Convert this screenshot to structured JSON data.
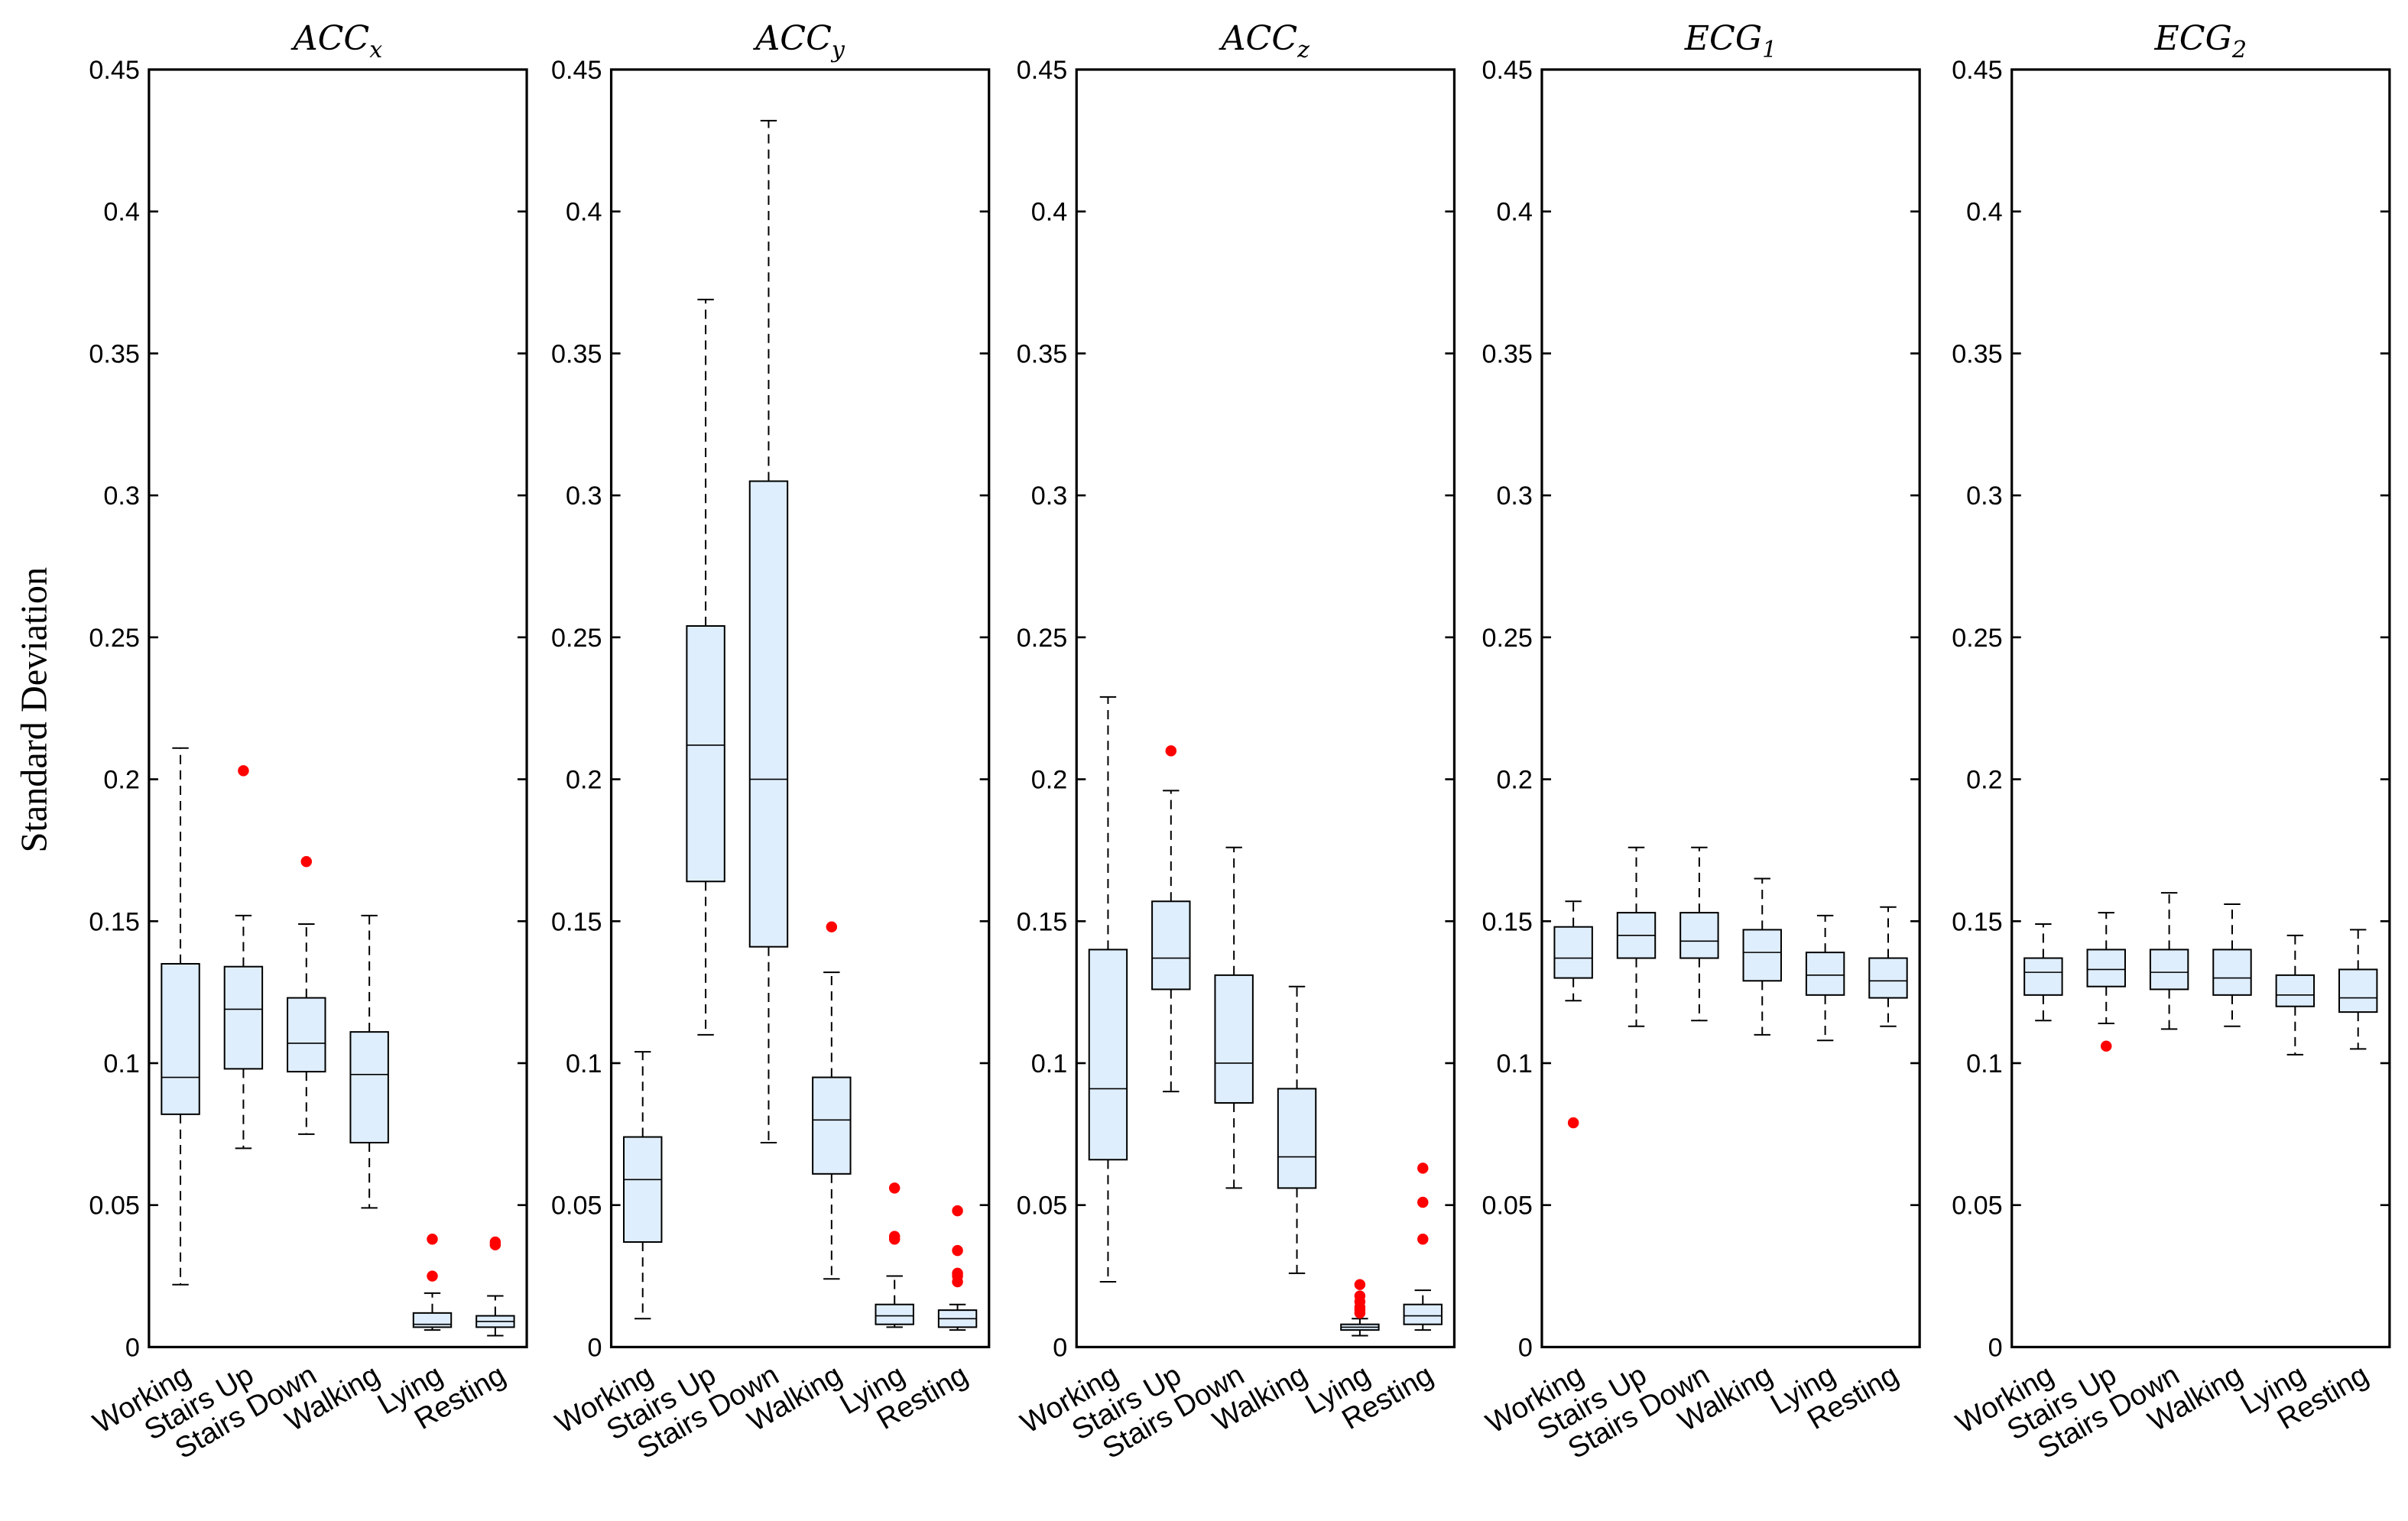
{
  "chart_data": {
    "type": "box",
    "ylabel": "Standard Deviation",
    "ylim": [
      0,
      0.45
    ],
    "yticks": [
      0,
      0.05,
      0.1,
      0.15,
      0.2,
      0.25,
      0.3,
      0.35,
      0.4,
      0.45
    ],
    "ytick_labels": [
      "0",
      "0.05",
      "0.1",
      "0.15",
      "0.2",
      "0.25",
      "0.3",
      "0.35",
      "0.4",
      "0.45"
    ],
    "categories": [
      "Working",
      "Stairs Up",
      "Stairs Down",
      "Walking",
      "Lying",
      "Resting"
    ],
    "colors": {
      "box_fill": "#dfeefc",
      "box_edge": "#000000",
      "outlier": "#ff0000"
    },
    "panels": [
      {
        "title_base": "ACC",
        "title_sub": "x",
        "boxes": [
          {
            "whisker_low": 0.022,
            "q1": 0.082,
            "median": 0.095,
            "q3": 0.135,
            "whisker_high": 0.211,
            "outliers": []
          },
          {
            "whisker_low": 0.07,
            "q1": 0.098,
            "median": 0.119,
            "q3": 0.134,
            "whisker_high": 0.152,
            "outliers": [
              0.203
            ]
          },
          {
            "whisker_low": 0.075,
            "q1": 0.097,
            "median": 0.107,
            "q3": 0.123,
            "whisker_high": 0.149,
            "outliers": [
              0.171
            ]
          },
          {
            "whisker_low": 0.049,
            "q1": 0.072,
            "median": 0.096,
            "q3": 0.111,
            "whisker_high": 0.152,
            "outliers": []
          },
          {
            "whisker_low": 0.006,
            "q1": 0.007,
            "median": 0.008,
            "q3": 0.012,
            "whisker_high": 0.019,
            "outliers": [
              0.025,
              0.038
            ]
          },
          {
            "whisker_low": 0.004,
            "q1": 0.007,
            "median": 0.009,
            "q3": 0.011,
            "whisker_high": 0.018,
            "outliers": [
              0.036,
              0.037
            ]
          }
        ]
      },
      {
        "title_base": "ACC",
        "title_sub": "y",
        "boxes": [
          {
            "whisker_low": 0.01,
            "q1": 0.037,
            "median": 0.059,
            "q3": 0.074,
            "whisker_high": 0.104,
            "outliers": []
          },
          {
            "whisker_low": 0.11,
            "q1": 0.164,
            "median": 0.212,
            "q3": 0.254,
            "whisker_high": 0.369,
            "outliers": []
          },
          {
            "whisker_low": 0.072,
            "q1": 0.141,
            "median": 0.2,
            "q3": 0.305,
            "whisker_high": 0.432,
            "outliers": []
          },
          {
            "whisker_low": 0.024,
            "q1": 0.061,
            "median": 0.08,
            "q3": 0.095,
            "whisker_high": 0.132,
            "outliers": [
              0.148
            ]
          },
          {
            "whisker_low": 0.007,
            "q1": 0.008,
            "median": 0.011,
            "q3": 0.015,
            "whisker_high": 0.025,
            "outliers": [
              0.038,
              0.039,
              0.056
            ]
          },
          {
            "whisker_low": 0.006,
            "q1": 0.007,
            "median": 0.01,
            "q3": 0.013,
            "whisker_high": 0.015,
            "outliers": [
              0.023,
              0.025,
              0.026,
              0.034,
              0.048
            ]
          }
        ]
      },
      {
        "title_base": "ACC",
        "title_sub": "z",
        "boxes": [
          {
            "whisker_low": 0.023,
            "q1": 0.066,
            "median": 0.091,
            "q3": 0.14,
            "whisker_high": 0.229,
            "outliers": []
          },
          {
            "whisker_low": 0.09,
            "q1": 0.126,
            "median": 0.137,
            "q3": 0.157,
            "whisker_high": 0.196,
            "outliers": [
              0.21
            ]
          },
          {
            "whisker_low": 0.056,
            "q1": 0.086,
            "median": 0.1,
            "q3": 0.131,
            "whisker_high": 0.176,
            "outliers": []
          },
          {
            "whisker_low": 0.026,
            "q1": 0.056,
            "median": 0.067,
            "q3": 0.091,
            "whisker_high": 0.127,
            "outliers": []
          },
          {
            "whisker_low": 0.004,
            "q1": 0.006,
            "median": 0.007,
            "q3": 0.008,
            "whisker_high": 0.01,
            "outliers": [
              0.012,
              0.013,
              0.014,
              0.016,
              0.018,
              0.022
            ]
          },
          {
            "whisker_low": 0.006,
            "q1": 0.008,
            "median": 0.011,
            "q3": 0.015,
            "whisker_high": 0.02,
            "outliers": [
              0.038,
              0.051,
              0.063
            ]
          }
        ]
      },
      {
        "title_base": "ECG",
        "title_sub": "1",
        "boxes": [
          {
            "whisker_low": 0.122,
            "q1": 0.13,
            "median": 0.137,
            "q3": 0.148,
            "whisker_high": 0.157,
            "outliers": [
              0.079
            ]
          },
          {
            "whisker_low": 0.113,
            "q1": 0.137,
            "median": 0.145,
            "q3": 0.153,
            "whisker_high": 0.176,
            "outliers": []
          },
          {
            "whisker_low": 0.115,
            "q1": 0.137,
            "median": 0.143,
            "q3": 0.153,
            "whisker_high": 0.176,
            "outliers": []
          },
          {
            "whisker_low": 0.11,
            "q1": 0.129,
            "median": 0.139,
            "q3": 0.147,
            "whisker_high": 0.165,
            "outliers": []
          },
          {
            "whisker_low": 0.108,
            "q1": 0.124,
            "median": 0.131,
            "q3": 0.139,
            "whisker_high": 0.152,
            "outliers": []
          },
          {
            "whisker_low": 0.113,
            "q1": 0.123,
            "median": 0.129,
            "q3": 0.137,
            "whisker_high": 0.155,
            "outliers": []
          }
        ]
      },
      {
        "title_base": "ECG",
        "title_sub": "2",
        "boxes": [
          {
            "whisker_low": 0.115,
            "q1": 0.124,
            "median": 0.132,
            "q3": 0.137,
            "whisker_high": 0.149,
            "outliers": []
          },
          {
            "whisker_low": 0.114,
            "q1": 0.127,
            "median": 0.133,
            "q3": 0.14,
            "whisker_high": 0.153,
            "outliers": [
              0.106
            ]
          },
          {
            "whisker_low": 0.112,
            "q1": 0.126,
            "median": 0.132,
            "q3": 0.14,
            "whisker_high": 0.16,
            "outliers": []
          },
          {
            "whisker_low": 0.113,
            "q1": 0.124,
            "median": 0.13,
            "q3": 0.14,
            "whisker_high": 0.156,
            "outliers": []
          },
          {
            "whisker_low": 0.103,
            "q1": 0.12,
            "median": 0.124,
            "q3": 0.131,
            "whisker_high": 0.145,
            "outliers": []
          },
          {
            "whisker_low": 0.105,
            "q1": 0.118,
            "median": 0.123,
            "q3": 0.133,
            "whisker_high": 0.147,
            "outliers": []
          }
        ]
      }
    ]
  }
}
